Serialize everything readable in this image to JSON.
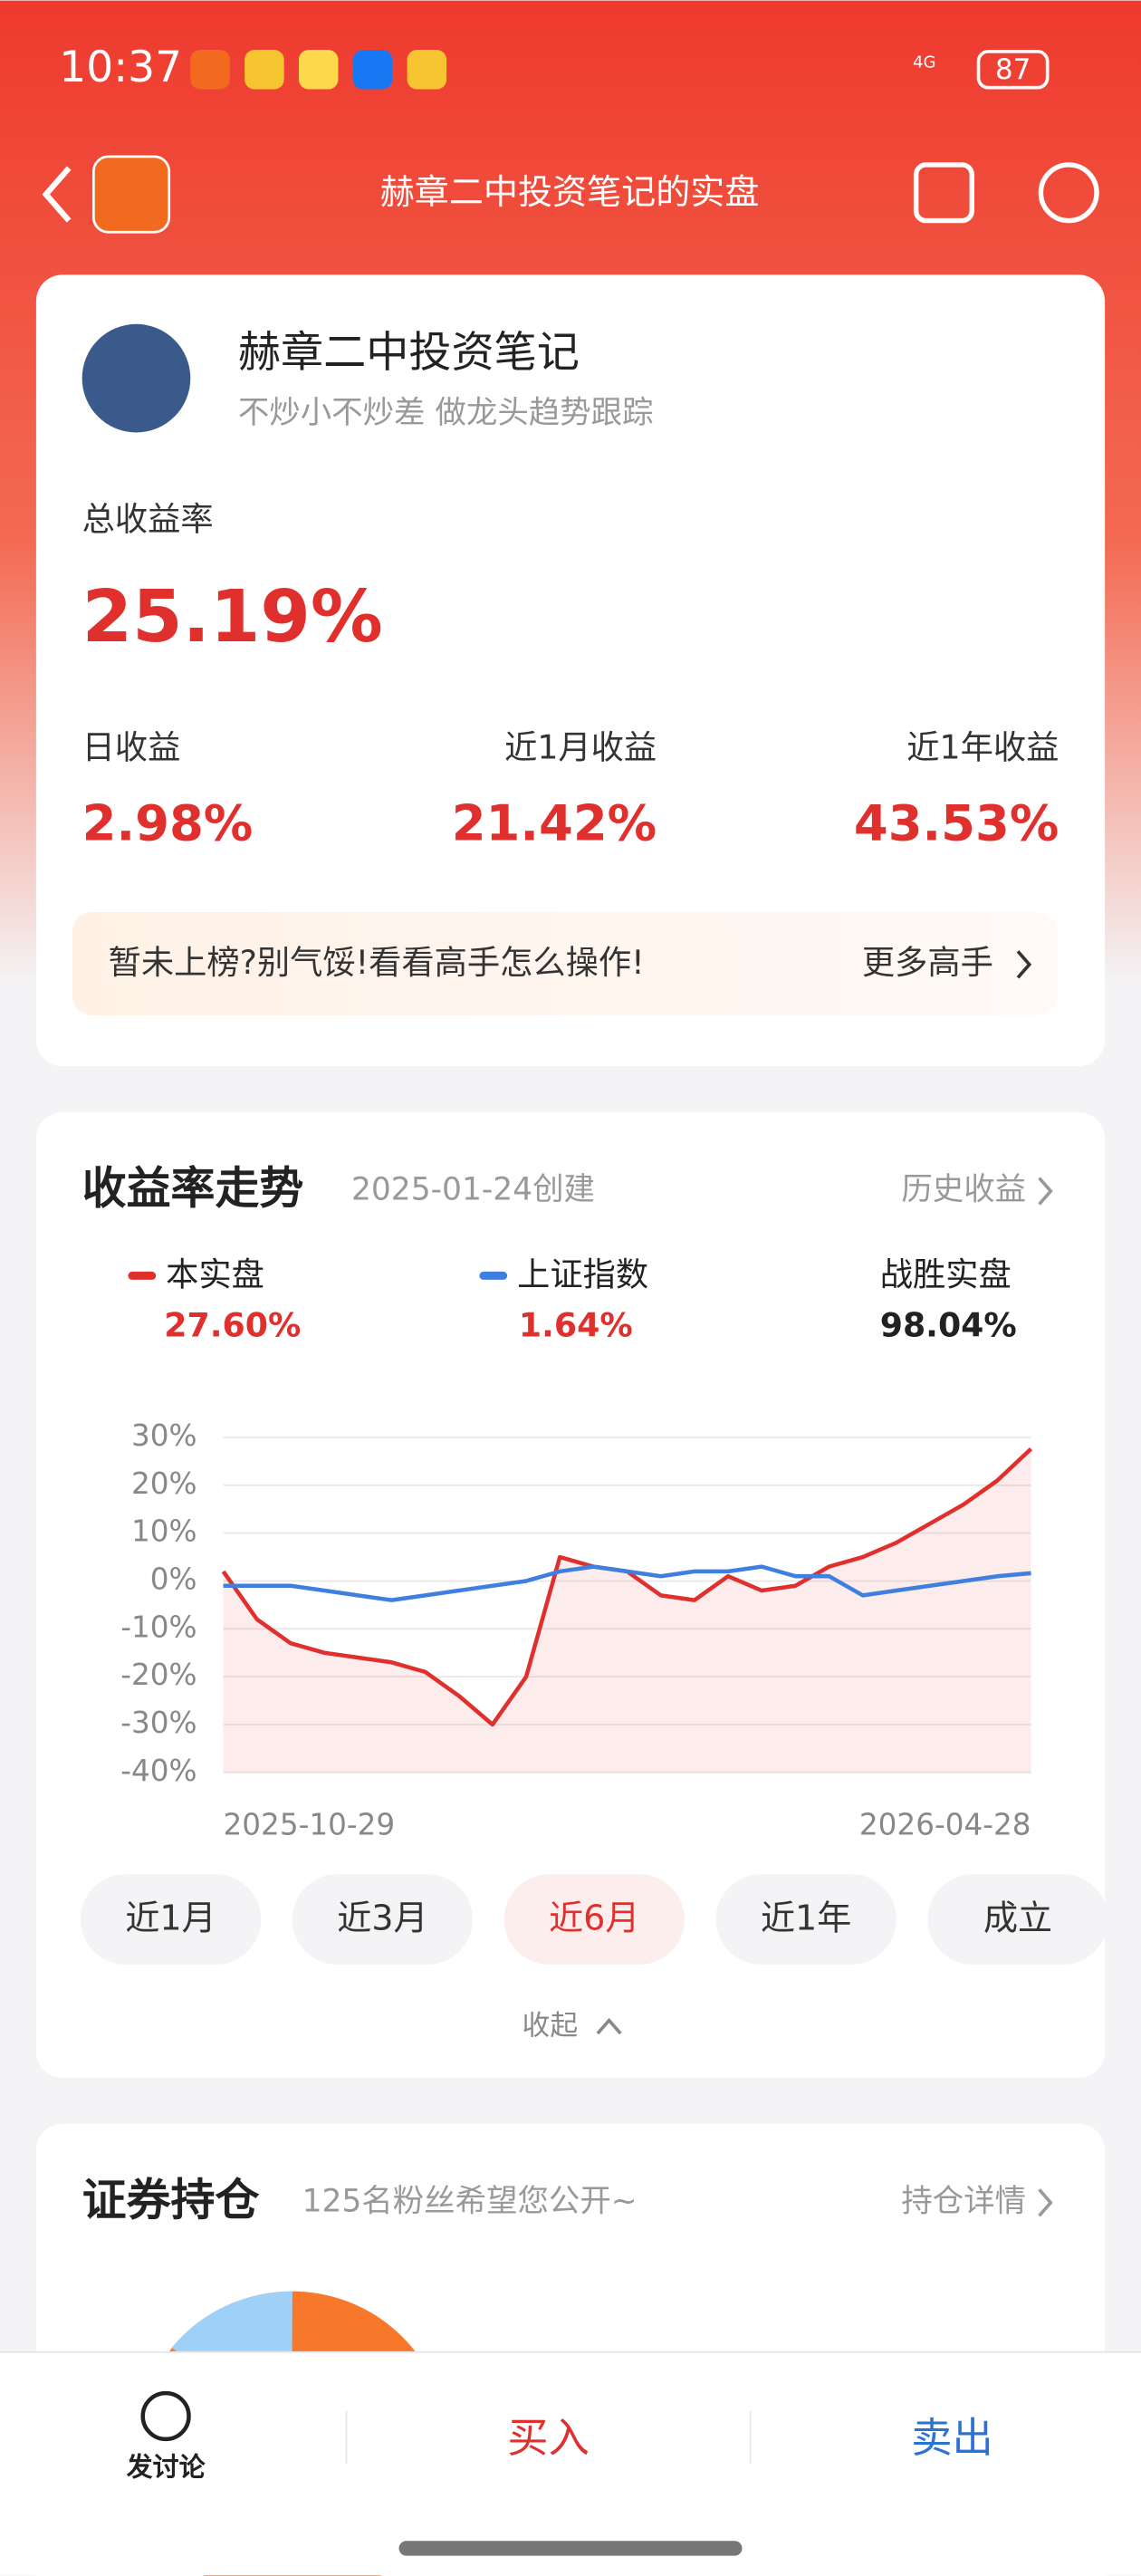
{
  "status_bar": {
    "time": "10:37",
    "network": "4G",
    "battery": "87"
  },
  "header": {
    "title": "赫章二中投资笔记的实盘"
  },
  "profile": {
    "name": "赫章二中投资笔记",
    "bio": "不炒小不炒差 做龙头趋势跟踪"
  },
  "total": {
    "label": "总收益率",
    "value": "25.19%"
  },
  "stats": [
    {
      "label": "日收益",
      "value": "2.98%"
    },
    {
      "label": "近1月收益",
      "value": "21.42%"
    },
    {
      "label": "近1年收益",
      "value": "43.53%"
    }
  ],
  "banner": {
    "text": "暂未上榜?别气馁!看看高手怎么操作!",
    "link": "更多高手"
  },
  "trend": {
    "title": "收益率走势",
    "created": "2025-01-24创建",
    "link": "历史收益",
    "win_label": "战胜实盘",
    "win_value": "98.04%",
    "ranges": [
      "近1月",
      "近3月",
      "近6月",
      "近1年",
      "成立"
    ],
    "collapse": "收起"
  },
  "chart_data": {
    "type": "line",
    "x": [
      "2025-10-29",
      null,
      null,
      null,
      null,
      null,
      null,
      null,
      null,
      null,
      null,
      null,
      null,
      null,
      null,
      null,
      null,
      null,
      null,
      null,
      null,
      null,
      null,
      null,
      "2026-04-28"
    ],
    "series": [
      {
        "name": "本实盘",
        "color": "#e0302e",
        "value_label": "27.60%",
        "values": [
          2,
          -8,
          -13,
          -15,
          -16,
          -17,
          -19,
          -24,
          -30,
          -20,
          5,
          3,
          2,
          -3,
          -4,
          1,
          -2,
          -1,
          3,
          5,
          8,
          12,
          16,
          21,
          27.6
        ]
      },
      {
        "name": "上证指数",
        "color": "#3f7fe0",
        "value_label": "1.64%",
        "values": [
          -1,
          -1,
          -1,
          -2,
          -3,
          -4,
          -3,
          -2,
          -1,
          0,
          2,
          3,
          2,
          1,
          2,
          2,
          3,
          1,
          1,
          -3,
          -2,
          -1,
          0,
          1,
          1.64
        ]
      }
    ],
    "ylim": [
      -40,
      30
    ],
    "yticks": [
      {
        "value": 30,
        "label": "30%"
      },
      {
        "value": 20,
        "label": "20%"
      },
      {
        "value": 10,
        "label": "10%"
      },
      {
        "value": 0,
        "label": "0%"
      },
      {
        "value": -10,
        "label": "-10%"
      },
      {
        "value": -20,
        "label": "-20%"
      },
      {
        "value": -30,
        "label": "-30%"
      },
      {
        "value": -40,
        "label": "-40%"
      }
    ],
    "grid": true
  },
  "holdings": {
    "title": "证券持仓",
    "subtitle": "125名粉丝希望您公开~",
    "link": "持仓详情"
  },
  "bottom": {
    "discuss": "发讨论",
    "buy": "买入",
    "sell": "卖出"
  }
}
